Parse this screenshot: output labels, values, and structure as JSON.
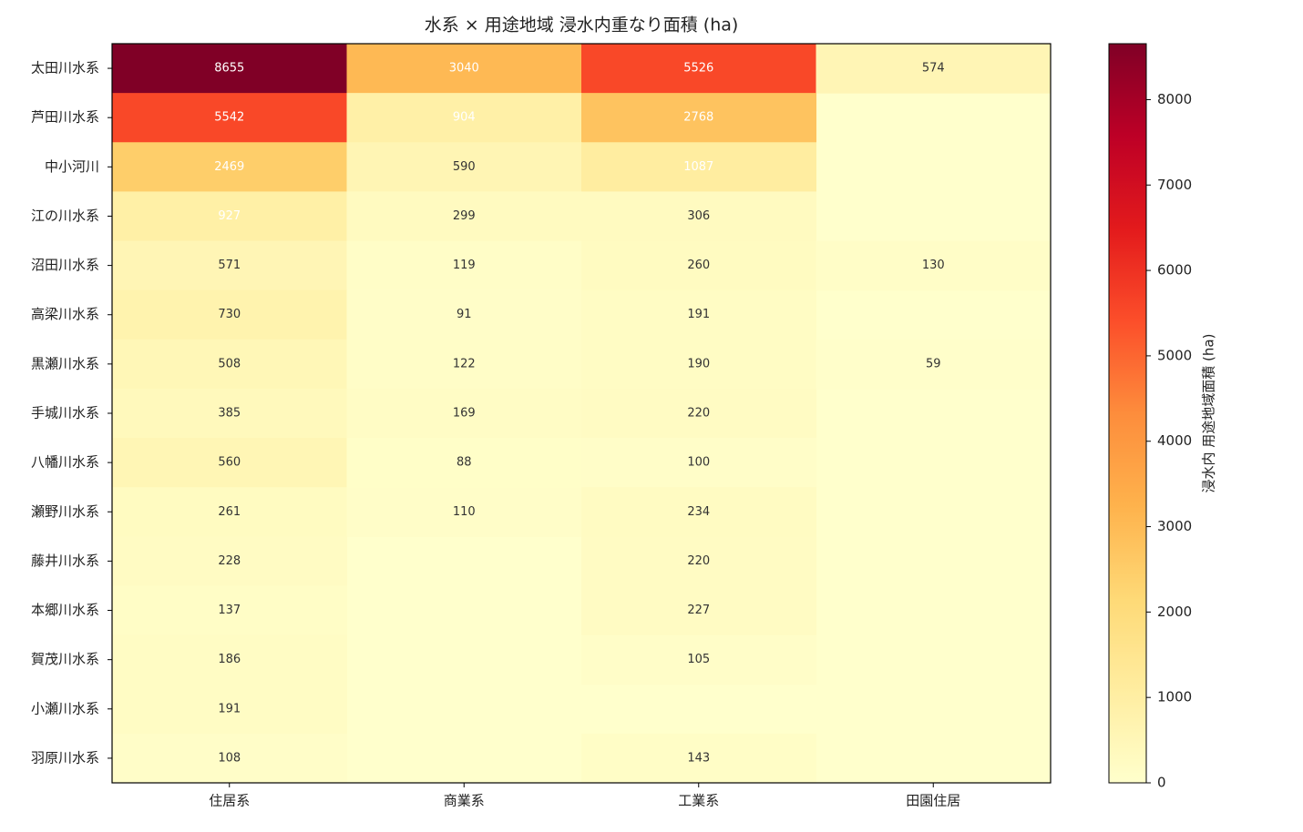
{
  "chart_data": {
    "type": "heatmap",
    "title": "水系 × 用途地域 浸水内重なり面積 (ha)",
    "columns": [
      "住居系",
      "商業系",
      "工業系",
      "田園住居"
    ],
    "rows": [
      "太田川水系",
      "芦田川水系",
      "中小河川",
      "江の川水系",
      "沼田川水系",
      "高梁川水系",
      "黒瀬川水系",
      "手城川水系",
      "八幡川水系",
      "瀬野川水系",
      "藤井川水系",
      "本郷川水系",
      "賀茂川水系",
      "小瀬川水系",
      "羽原川水系"
    ],
    "values": [
      [
        8655,
        3040,
        5526,
        574
      ],
      [
        5542,
        904,
        2768,
        null
      ],
      [
        2469,
        590,
        1087,
        null
      ],
      [
        927,
        299,
        306,
        null
      ],
      [
        571,
        119,
        260,
        130
      ],
      [
        730,
        91,
        191,
        null
      ],
      [
        508,
        122,
        190,
        59
      ],
      [
        385,
        169,
        220,
        null
      ],
      [
        560,
        88,
        100,
        null
      ],
      [
        261,
        110,
        234,
        null
      ],
      [
        228,
        null,
        220,
        null
      ],
      [
        137,
        null,
        227,
        null
      ],
      [
        186,
        null,
        105,
        null
      ],
      [
        191,
        null,
        null,
        null
      ],
      [
        108,
        null,
        143,
        null
      ]
    ],
    "colorbar_label": "浸水内 用途地域面積 (ha)",
    "colorbar_lim": [
      0,
      8655
    ],
    "colorbar_ticks": [
      0,
      1000,
      2000,
      3000,
      4000,
      5000,
      6000,
      7000,
      8000
    ],
    "colormap": [
      "#ffffcc",
      "#ffeda0",
      "#fed976",
      "#feb24c",
      "#fd8d3c",
      "#fc4e2a",
      "#e31a1c",
      "#bd0026",
      "#800026"
    ]
  }
}
